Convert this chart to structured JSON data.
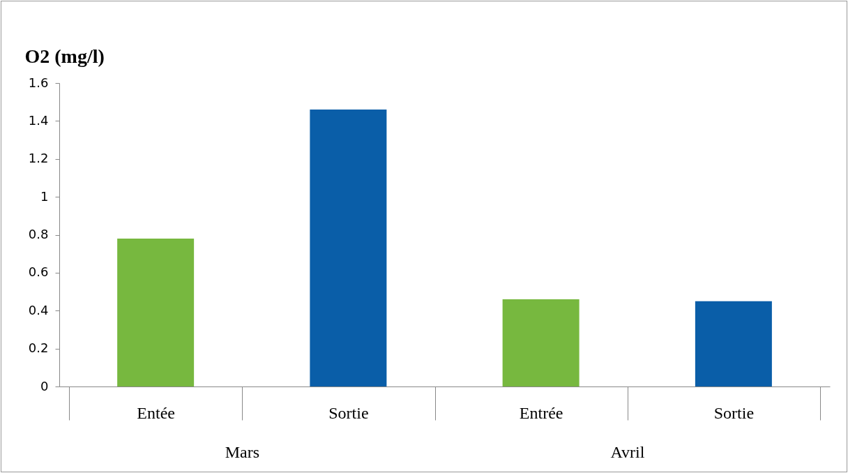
{
  "chart_data": {
    "type": "bar",
    "ylabel": "O2 (mg/l)",
    "categories": [
      "Entée",
      "Sortie",
      "Entrée",
      "Sortie"
    ],
    "values": [
      0.78,
      1.46,
      0.46,
      0.45
    ],
    "colors": [
      "#77b83f",
      "#0a5ea8",
      "#77b83f",
      "#0a5ea8"
    ],
    "ylim": [
      0,
      1.6
    ],
    "yticks": [
      0,
      0.2,
      0.4,
      0.6,
      0.8,
      1,
      1.2,
      1.4,
      1.6
    ],
    "annotations": [
      "Mars",
      "Avril"
    ],
    "grid": false
  }
}
